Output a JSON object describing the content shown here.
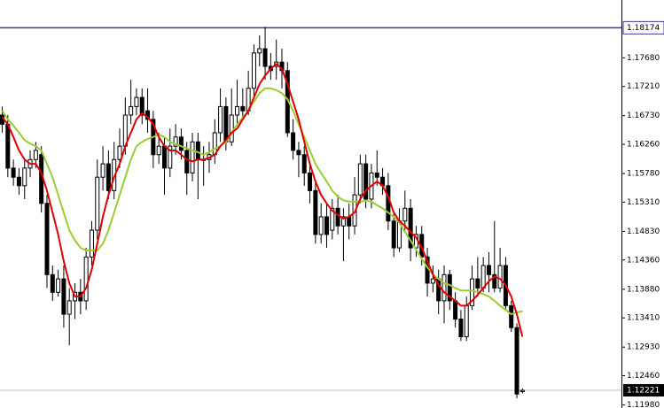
{
  "chart_data": {
    "type": "candlestick",
    "bull_color": "#ffffff",
    "bear_color": "#000000",
    "open": [
      1.1674,
      1.1659,
      1.1587,
      1.1572,
      1.1558,
      1.1587,
      1.1601,
      1.1609,
      1.1529,
      1.1412,
      1.1383,
      1.1405,
      1.1347,
      1.1369,
      1.1383,
      1.1369,
      1.1441,
      1.1485,
      1.1572,
      1.1594,
      1.155,
      1.1601,
      1.1623,
      1.1674,
      1.1688,
      1.1703,
      1.1681,
      1.1667,
      1.1609,
      1.1623,
      1.1587,
      1.1623,
      1.1638,
      1.1616,
      1.1579,
      1.163,
      1.1601,
      1.1601,
      1.1609,
      1.1645,
      1.1688,
      1.163,
      1.1674,
      1.1688,
      1.1681,
      1.1718,
      1.1776,
      1.1783,
      1.1754,
      1.1754,
      1.1761,
      1.1747,
      1.1645,
      1.1616,
      1.1609,
      1.1579,
      1.155,
      1.1478,
      1.1507,
      1.1485,
      1.1521,
      1.1492,
      1.1507,
      1.1492,
      1.1543,
      1.1594,
      1.1536,
      1.1579,
      1.1572,
      1.1558,
      1.15,
      1.1456,
      1.15,
      1.1521,
      1.1456,
      1.1478,
      1.1441,
      1.1398,
      1.1405,
      1.1369,
      1.1412,
      1.1369,
      1.1339,
      1.131,
      1.1361,
      1.1405,
      1.139,
      1.1427,
      1.1412,
      1.139,
      1.1427,
      1.1361,
      1.1325,
      1.122
    ],
    "high": [
      1.1688,
      1.1674,
      1.1601,
      1.1587,
      1.1601,
      1.1616,
      1.163,
      1.1623,
      1.1543,
      1.1427,
      1.142,
      1.1427,
      1.139,
      1.1398,
      1.1405,
      1.1456,
      1.15,
      1.1601,
      1.1623,
      1.1616,
      1.163,
      1.1652,
      1.1703,
      1.1732,
      1.1718,
      1.1718,
      1.1718,
      1.1681,
      1.1645,
      1.1638,
      1.1652,
      1.1659,
      1.1652,
      1.163,
      1.1645,
      1.1645,
      1.1623,
      1.163,
      1.1667,
      1.1718,
      1.1703,
      1.1718,
      1.1732,
      1.1718,
      1.1747,
      1.179,
      1.1805,
      1.1819,
      1.1776,
      1.1798,
      1.1783,
      1.1761,
      1.1667,
      1.163,
      1.1623,
      1.1594,
      1.1565,
      1.1529,
      1.1529,
      1.1536,
      1.1543,
      1.1521,
      1.1529,
      1.1572,
      1.1609,
      1.1609,
      1.1594,
      1.1616,
      1.1587,
      1.1579,
      1.1514,
      1.1521,
      1.155,
      1.1536,
      1.1492,
      1.1492,
      1.1456,
      1.1427,
      1.142,
      1.1427,
      1.142,
      1.1383,
      1.1354,
      1.1376,
      1.1427,
      1.1441,
      1.1441,
      1.1449,
      1.15,
      1.1456,
      1.1441,
      1.1369,
      1.1332,
      1.1225
    ],
    "low": [
      1.1645,
      1.1572,
      1.1558,
      1.1543,
      1.1536,
      1.1572,
      1.1587,
      1.1514,
      1.139,
      1.1369,
      1.1376,
      1.1325,
      1.1296,
      1.1339,
      1.1347,
      1.1354,
      1.1427,
      1.147,
      1.155,
      1.1536,
      1.1536,
      1.1587,
      1.1609,
      1.1659,
      1.1674,
      1.1659,
      1.1645,
      1.1587,
      1.1594,
      1.1543,
      1.1572,
      1.1609,
      1.1601,
      1.1543,
      1.1565,
      1.1536,
      1.1558,
      1.1579,
      1.1594,
      1.163,
      1.1616,
      1.1623,
      1.1659,
      1.1667,
      1.1674,
      1.1703,
      1.1754,
      1.1732,
      1.1732,
      1.1732,
      1.1718,
      1.1638,
      1.1601,
      1.1572,
      1.1558,
      1.1529,
      1.1463,
      1.1463,
      1.1456,
      1.147,
      1.1478,
      1.1434,
      1.147,
      1.1478,
      1.1529,
      1.1521,
      1.1521,
      1.1558,
      1.1543,
      1.1485,
      1.1441,
      1.1449,
      1.1485,
      1.1434,
      1.1441,
      1.1427,
      1.1376,
      1.1383,
      1.1347,
      1.1332,
      1.1354,
      1.1325,
      1.1303,
      1.1303,
      1.1354,
      1.1376,
      1.1383,
      1.1383,
      1.1383,
      1.1383,
      1.1354,
      1.1318,
      1.1209,
      1.1217
    ],
    "close": [
      1.1659,
      1.1587,
      1.1572,
      1.1558,
      1.1587,
      1.1601,
      1.1616,
      1.1529,
      1.1412,
      1.1383,
      1.1405,
      1.1347,
      1.1369,
      1.1383,
      1.1369,
      1.1441,
      1.1485,
      1.1572,
      1.1594,
      1.155,
      1.1601,
      1.1623,
      1.1674,
      1.1688,
      1.1703,
      1.1674,
      1.1667,
      1.1609,
      1.1623,
      1.1587,
      1.1623,
      1.1638,
      1.1616,
      1.1579,
      1.163,
      1.1601,
      1.1601,
      1.1609,
      1.1645,
      1.1688,
      1.163,
      1.1674,
      1.1688,
      1.1681,
      1.1718,
      1.1776,
      1.1783,
      1.1754,
      1.1747,
      1.1761,
      1.1747,
      1.1645,
      1.1616,
      1.1609,
      1.1579,
      1.155,
      1.1478,
      1.1507,
      1.1478,
      1.1521,
      1.1492,
      1.1507,
      1.1492,
      1.1543,
      1.1594,
      1.1536,
      1.1579,
      1.1572,
      1.1558,
      1.15,
      1.1456,
      1.15,
      1.1521,
      1.1456,
      1.1478,
      1.1441,
      1.1398,
      1.1405,
      1.1369,
      1.1412,
      1.1369,
      1.1339,
      1.131,
      1.1361,
      1.1405,
      1.139,
      1.1427,
      1.1412,
      1.139,
      1.1427,
      1.1361,
      1.1325,
      1.1216,
      1.1222
    ],
    "series": [
      {
        "color": "#9acd32",
        "values": [
          1.1681,
          1.1667,
          1.1657,
          1.1645,
          1.1633,
          1.1627,
          1.1623,
          1.1616,
          1.1594,
          1.1572,
          1.1543,
          1.1514,
          1.1485,
          1.1468,
          1.1456,
          1.1452,
          1.1452,
          1.1452,
          1.1463,
          1.1485,
          1.1514,
          1.1543,
          1.1572,
          1.1601,
          1.1623,
          1.163,
          1.1635,
          1.1638,
          1.1642,
          1.1638,
          1.163,
          1.1626,
          1.1623,
          1.1619,
          1.1616,
          1.1613,
          1.1609,
          1.1613,
          1.1619,
          1.1623,
          1.163,
          1.1645,
          1.1659,
          1.167,
          1.1681,
          1.1696,
          1.171,
          1.1718,
          1.1718,
          1.1715,
          1.171,
          1.17,
          1.1681,
          1.1659,
          1.1638,
          1.1616,
          1.1594,
          1.1579,
          1.1565,
          1.155,
          1.154,
          1.1534,
          1.1532,
          1.1532,
          1.1532,
          1.1533,
          1.1532,
          1.1526,
          1.1521,
          1.1514,
          1.1507,
          1.1497,
          1.1482,
          1.1468,
          1.1453,
          1.1438,
          1.1424,
          1.1412,
          1.1405,
          1.1398,
          1.1395,
          1.139,
          1.1386,
          1.1386,
          1.1386,
          1.1383,
          1.138,
          1.1376,
          1.1369,
          1.1361,
          1.1354,
          1.1347,
          1.135,
          1.1352
        ]
      },
      {
        "color": "#e00000",
        "values": [
          1.1671,
          1.1659,
          1.1638,
          1.1616,
          1.1601,
          1.1594,
          1.1594,
          1.1579,
          1.155,
          1.1514,
          1.1478,
          1.1434,
          1.1398,
          1.1376,
          1.1376,
          1.139,
          1.142,
          1.1463,
          1.1507,
          1.1543,
          1.1572,
          1.1594,
          1.1623,
          1.1645,
          1.1667,
          1.1677,
          1.1671,
          1.1659,
          1.1638,
          1.1623,
          1.1616,
          1.1616,
          1.1609,
          1.1601,
          1.1598,
          1.1601,
          1.1601,
          1.1604,
          1.1609,
          1.1623,
          1.1633,
          1.1645,
          1.1652,
          1.1667,
          1.1681,
          1.1703,
          1.1725,
          1.1739,
          1.175,
          1.1758,
          1.175,
          1.1725,
          1.1696,
          1.1667,
          1.163,
          1.1594,
          1.1565,
          1.1543,
          1.1529,
          1.1517,
          1.151,
          1.1504,
          1.1507,
          1.1514,
          1.1536,
          1.155,
          1.1558,
          1.1565,
          1.1558,
          1.154,
          1.1514,
          1.15,
          1.1492,
          1.1482,
          1.1473,
          1.1456,
          1.1434,
          1.1412,
          1.1395,
          1.1383,
          1.1376,
          1.1369,
          1.1361,
          1.1361,
          1.1369,
          1.1379,
          1.139,
          1.1401,
          1.1409,
          1.1405,
          1.1395,
          1.1376,
          1.1347,
          1.131
        ]
      }
    ],
    "hline": {
      "value": 1.18174,
      "color": "#3c3c96"
    },
    "last_price": {
      "value": 1.12221,
      "color": "#c0c0c0"
    },
    "ylim": [
      1.1193,
      1.1863
    ],
    "yticks": [
      {
        "value": 1.1768,
        "label": "1.17680"
      },
      {
        "value": 1.1721,
        "label": "1.17210"
      },
      {
        "value": 1.1673,
        "label": "1.16730"
      },
      {
        "value": 1.1626,
        "label": "1.16260"
      },
      {
        "value": 1.1578,
        "label": "1.15780"
      },
      {
        "value": 1.1531,
        "label": "1.15310"
      },
      {
        "value": 1.1483,
        "label": "1.14830"
      },
      {
        "value": 1.1436,
        "label": "1.14360"
      },
      {
        "value": 1.1388,
        "label": "1.13880"
      },
      {
        "value": 1.1341,
        "label": "1.13410"
      },
      {
        "value": 1.1293,
        "label": "1.12930"
      },
      {
        "value": 1.1246,
        "label": "1.12460"
      },
      {
        "value": 1.1198,
        "label": "1.11980"
      }
    ]
  }
}
